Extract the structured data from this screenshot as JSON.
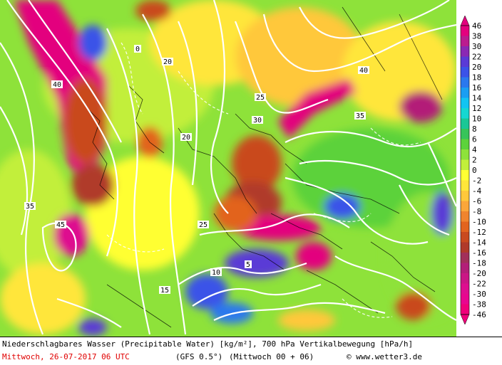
{
  "footer": {
    "title": "Niederschlagbares Wasser (Precipitable Water) [kg/m²], 700 hPa Vertikalbewegung [hPa/h]",
    "date": "Mittwoch, 26-07-2017  06 UTC",
    "model": "(GFS 0.5°)",
    "run": "(Mittwoch 00 + 06)",
    "copyright": "© www.wetter3.de"
  },
  "legend": {
    "ticks": [
      "46",
      "38",
      "30",
      "22",
      "20",
      "18",
      "16",
      "14",
      "12",
      "10",
      "8",
      "6",
      "4",
      "2",
      "0",
      "-2",
      "-4",
      "-6",
      "-8",
      "-10",
      "-12",
      "-14",
      "-16",
      "-18",
      "-20",
      "-22",
      "-30",
      "-38",
      "-46"
    ],
    "colors": [
      "#e3007e",
      "#bb1b8f",
      "#8a28b4",
      "#5a3ad6",
      "#3b52e8",
      "#2a78ee",
      "#1a9ef2",
      "#12c4f2",
      "#15d7d2",
      "#1ac796",
      "#36c45a",
      "#5cd23b",
      "#8ee23a",
      "#c2ef3b",
      "#ffff33",
      "#ffe63a",
      "#ffc83b",
      "#fba63a",
      "#f0842e",
      "#e2641f",
      "#c94a1f",
      "#b03a2a",
      "#a2305a",
      "#b31f78",
      "#ca1685",
      "#de0e8f",
      "#e8068f",
      "#f0007a"
    ]
  },
  "contour_labels": [
    "40",
    "35",
    "25",
    "20",
    "20",
    "25",
    "30",
    "35",
    "40",
    "45",
    "15",
    "10",
    "5",
    "0"
  ],
  "colors": {
    "field_base": "#8ee23a"
  }
}
